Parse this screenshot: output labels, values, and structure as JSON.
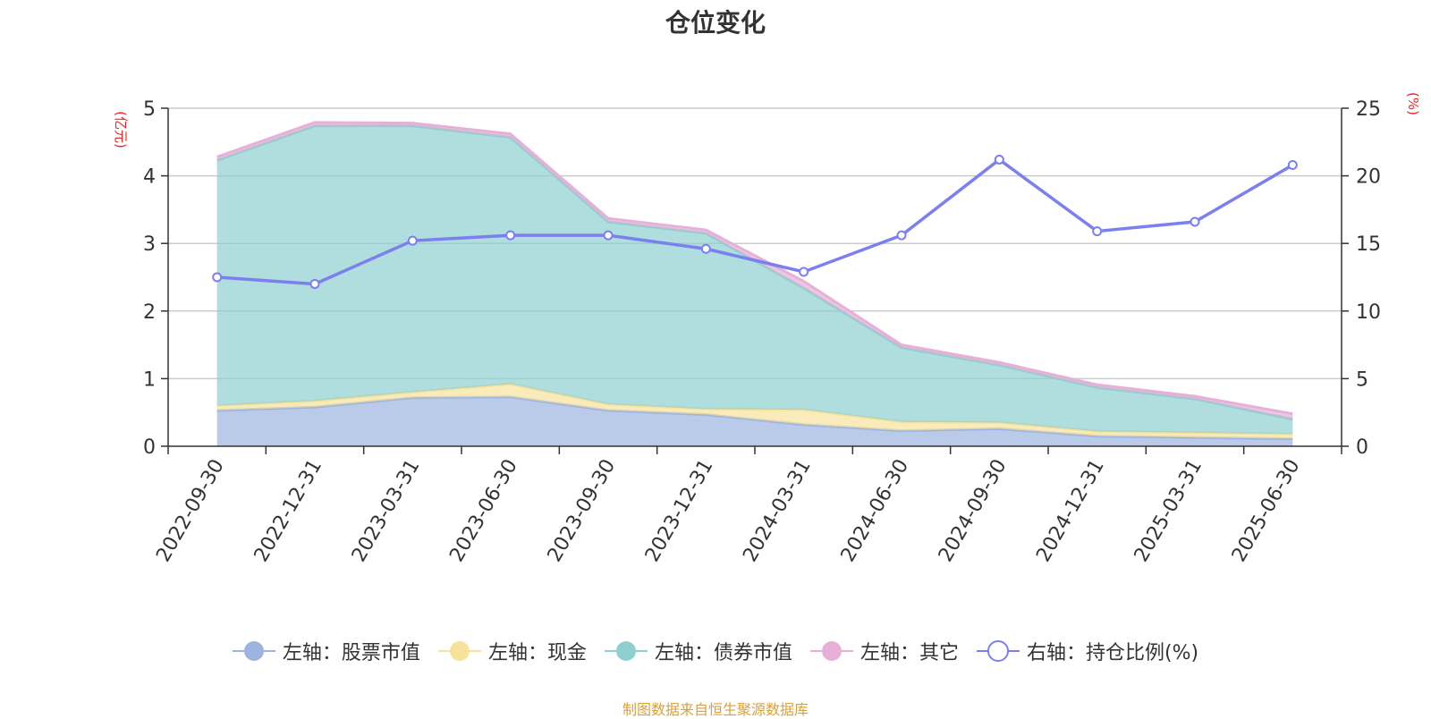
{
  "chart_data": {
    "type": "area",
    "title": "仓位变化",
    "left_axis": {
      "unit": "(亿元)",
      "ylim": [
        0,
        5
      ],
      "ticks": [
        "0",
        "1",
        "2",
        "3",
        "4",
        "5"
      ]
    },
    "right_axis": {
      "unit": "(%)",
      "ylim": [
        0,
        25
      ],
      "ticks": [
        "0",
        "5",
        "10",
        "15",
        "20",
        "25"
      ]
    },
    "categories": [
      "2022-09-30",
      "2022-12-31",
      "2023-03-31",
      "2023-06-30",
      "2023-09-30",
      "2023-12-31",
      "2024-03-31",
      "2024-06-30",
      "2024-09-30",
      "2024-12-31",
      "2025-03-31",
      "2025-06-30"
    ],
    "series": [
      {
        "name": "左轴：股票市值",
        "axis": "left",
        "kind": "stacked-area",
        "color": "#9db3e0",
        "values": [
          0.53,
          0.58,
          0.72,
          0.73,
          0.53,
          0.47,
          0.32,
          0.23,
          0.26,
          0.15,
          0.13,
          0.11
        ]
      },
      {
        "name": "左轴：现金",
        "axis": "left",
        "kind": "stacked-area",
        "color": "#f7e29c",
        "values": [
          0.07,
          0.09,
          0.08,
          0.19,
          0.09,
          0.08,
          0.22,
          0.13,
          0.09,
          0.07,
          0.07,
          0.07
        ]
      },
      {
        "name": "左轴：债券市值",
        "axis": "left",
        "kind": "stacked-area",
        "color": "#8fcfcf",
        "values": [
          3.63,
          4.07,
          3.94,
          3.65,
          2.7,
          2.6,
          1.8,
          1.1,
          0.85,
          0.65,
          0.5,
          0.22
        ]
      },
      {
        "name": "左轴：其它",
        "axis": "left",
        "kind": "stacked-area",
        "color": "#e6b0d8",
        "values": [
          0.05,
          0.05,
          0.04,
          0.05,
          0.05,
          0.05,
          0.1,
          0.04,
          0.04,
          0.04,
          0.04,
          0.08
        ]
      },
      {
        "name": "右轴：持仓比例(%)",
        "axis": "right",
        "kind": "line",
        "color": "#7b7fef",
        "values": [
          12.5,
          12.0,
          15.2,
          15.6,
          15.6,
          14.6,
          12.9,
          15.6,
          21.2,
          15.9,
          16.6,
          20.8
        ]
      }
    ],
    "grid": true,
    "legend_position": "bottom"
  },
  "source_note": "制图数据来自恒生聚源数据库"
}
